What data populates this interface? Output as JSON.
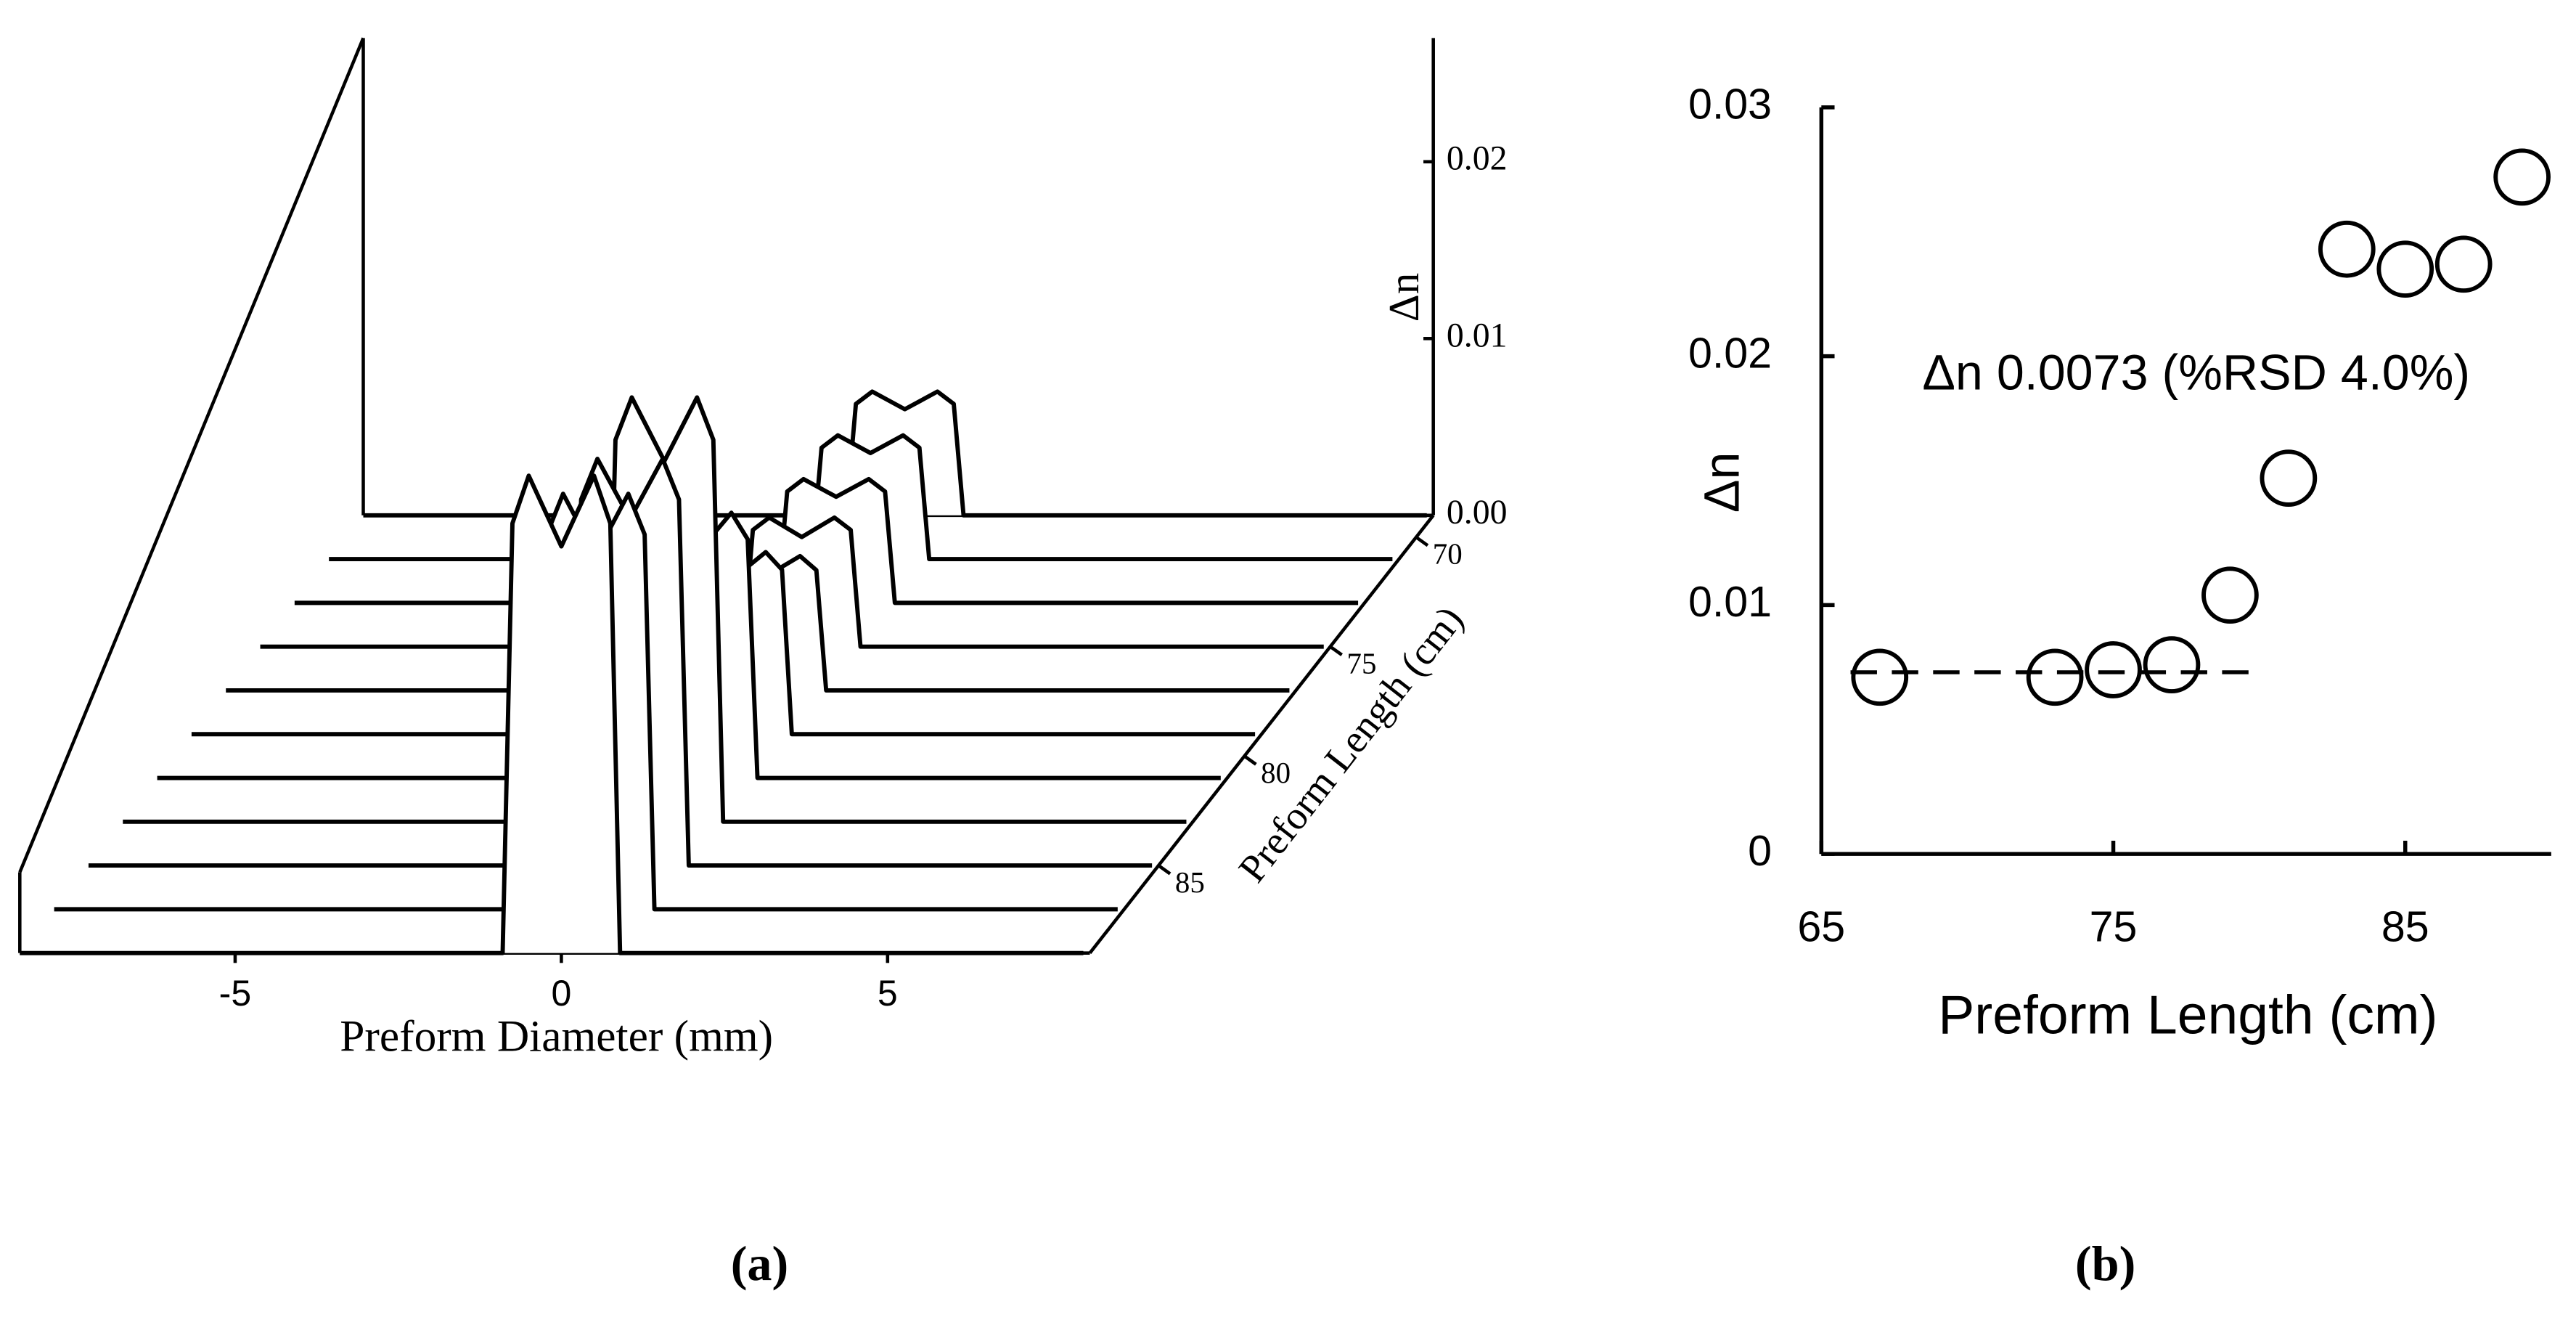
{
  "chart_data": [
    {
      "type": "waterfall",
      "xlabel": "Preform Diameter (mm)",
      "ylabel": "Δn",
      "zlabel": "Preform Length (cm)",
      "caption": "(a)",
      "x": [
        -8.3,
        -0.9,
        -0.75,
        -0.5,
        0,
        0.5,
        0.75,
        0.9,
        8
      ],
      "xlim": [
        -8.3,
        8.1
      ],
      "xticks": [
        -5,
        0,
        5
      ],
      "ylim": [
        0,
        0.027
      ],
      "yticks": [
        {
          "value": 0,
          "label": "0.00"
        },
        0.01,
        0.02
      ],
      "zlim": [
        69,
        89
      ],
      "zticks": [
        70,
        75,
        80,
        85
      ],
      "color": "#000000",
      "series": [
        {
          "z": 69,
          "values": [
            0,
            0,
            0.0063,
            0.007,
            0.006,
            0.007,
            0.0063,
            0,
            0
          ]
        },
        {
          "z": 71,
          "values": [
            0,
            0,
            0.0063,
            0.007,
            0.006,
            0.007,
            0.0063,
            0,
            0
          ]
        },
        {
          "z": 73,
          "values": [
            0,
            0,
            0.0063,
            0.007,
            0.006,
            0.007,
            0.0063,
            0,
            0
          ]
        },
        {
          "z": 75,
          "values": [
            0,
            0,
            0.0066,
            0.0073,
            0.0062,
            0.0073,
            0.0066,
            0,
            0
          ]
        },
        {
          "z": 77,
          "values": [
            0,
            0,
            0.0068,
            0.0076,
            0.0065,
            0.0076,
            0.0068,
            0,
            0
          ]
        },
        {
          "z": 79,
          "values": [
            0,
            0,
            0.0093,
            0.0103,
            0.0088,
            0.0103,
            0.0093,
            0,
            0
          ]
        },
        {
          "z": 81,
          "values": [
            0,
            0,
            0.0135,
            0.015,
            0.0128,
            0.015,
            0.0135,
            0,
            0
          ]
        },
        {
          "z": 83,
          "values": [
            0,
            0,
            0.0216,
            0.024,
            0.0204,
            0.024,
            0.0216,
            0,
            0
          ]
        },
        {
          "z": 85,
          "values": [
            0,
            0,
            0.0207,
            0.023,
            0.0196,
            0.023,
            0.0207,
            0,
            0
          ]
        },
        {
          "z": 87,
          "values": [
            0,
            0,
            0.0212,
            0.0235,
            0.02,
            0.0235,
            0.0212,
            0,
            0
          ]
        },
        {
          "z": 89,
          "values": [
            0,
            0,
            0.0243,
            0.027,
            0.023,
            0.027,
            0.0243,
            0,
            0
          ]
        }
      ]
    },
    {
      "type": "scatter",
      "xlabel": "Preform Length (cm)",
      "ylabel": "Δn",
      "caption": "(b)",
      "annotation": "Δn 0.0073 (%RSD 4.0%)",
      "x": [
        67,
        73,
        75,
        77,
        79,
        81,
        83,
        85,
        87,
        89
      ],
      "values": [
        0.0071,
        0.0071,
        0.0074,
        0.0076,
        0.0104,
        0.0151,
        0.0243,
        0.0235,
        0.0237,
        0.0272
      ],
      "xlim": [
        65,
        90
      ],
      "xticks": [
        65,
        75,
        85
      ],
      "ylim": [
        0,
        0.03
      ],
      "yticks": [
        0,
        0.01,
        0.02,
        0.03
      ],
      "hline": {
        "value": 0.0073,
        "x": [
          66,
          80
        ]
      },
      "color": "#000000"
    }
  ]
}
